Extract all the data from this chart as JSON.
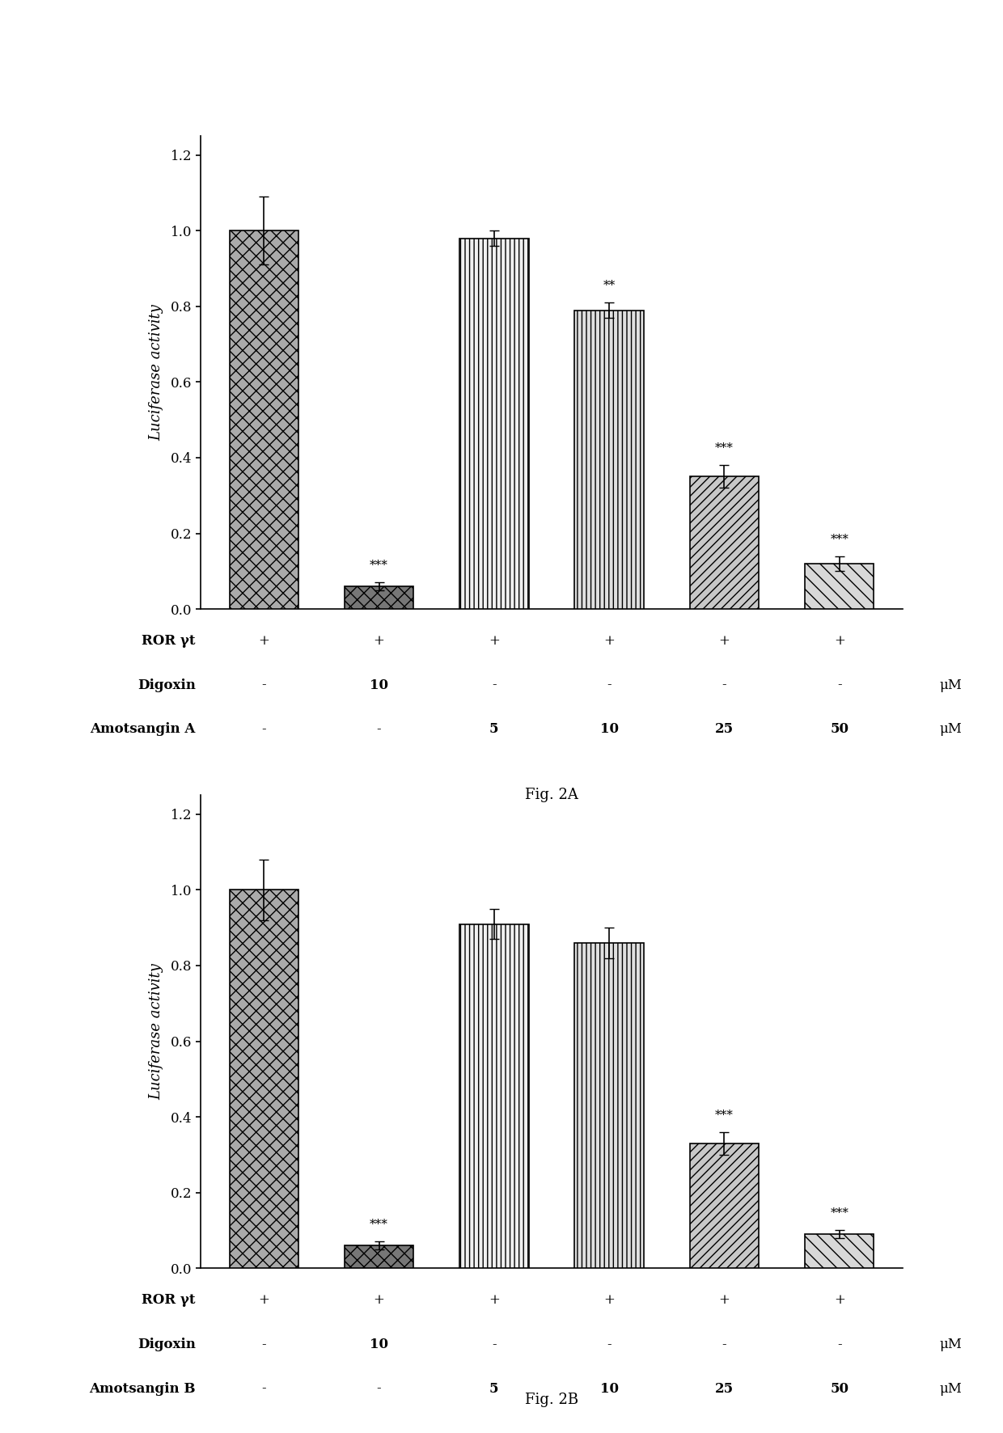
{
  "fig2A": {
    "values": [
      1.0,
      0.06,
      0.98,
      0.79,
      0.35,
      0.12
    ],
    "errors": [
      0.09,
      0.01,
      0.02,
      0.02,
      0.03,
      0.02
    ],
    "significance": [
      "",
      "***",
      "",
      "**",
      "***",
      "***"
    ],
    "ylabel": "Luciferase activity",
    "ylim": [
      0,
      1.25
    ],
    "yticks": [
      0.0,
      0.2,
      0.4,
      0.6,
      0.8,
      1.0,
      1.2
    ],
    "row_labels": [
      "ROR γt",
      "Digoxin",
      "Amotsangin A"
    ],
    "row_values": [
      [
        "+",
        "+",
        "+",
        "+",
        "+",
        "+"
      ],
      [
        "-",
        "10",
        "-",
        "-",
        "-",
        "-"
      ],
      [
        "-",
        "-",
        "5",
        "10",
        "25",
        "50"
      ]
    ],
    "row_units": [
      "",
      "μM",
      "μM"
    ],
    "fig_label": "Fig. 2A"
  },
  "fig2B": {
    "values": [
      1.0,
      0.06,
      0.91,
      0.86,
      0.33,
      0.09
    ],
    "errors": [
      0.08,
      0.01,
      0.04,
      0.04,
      0.03,
      0.01
    ],
    "significance": [
      "",
      "***",
      "",
      "",
      "***",
      "***"
    ],
    "ylabel": "Luciferase activity",
    "ylim": [
      0,
      1.25
    ],
    "yticks": [
      0.0,
      0.2,
      0.4,
      0.6,
      0.8,
      1.0,
      1.2
    ],
    "row_labels": [
      "ROR γt",
      "Digoxin",
      "Amotsangin B"
    ],
    "row_values": [
      [
        "+",
        "+",
        "+",
        "+",
        "+",
        "+"
      ],
      [
        "-",
        "10",
        "-",
        "-",
        "-",
        "-"
      ],
      [
        "-",
        "-",
        "5",
        "10",
        "25",
        "50"
      ]
    ],
    "row_units": [
      "",
      "μM",
      "μM"
    ],
    "fig_label": "Fig. 2B"
  },
  "background_color": "#ffffff",
  "text_color": "#000000",
  "edge_color": "#000000",
  "bar_width": 0.6,
  "face_colors": [
    "#aaaaaa",
    "#777777",
    "#f0f0f0",
    "#e0e0e0",
    "#c8c8c8",
    "#d8d8d8"
  ],
  "hatch_patterns": [
    "xx",
    "xx",
    "|||",
    "|||",
    "///",
    "\\\\"
  ],
  "fontsize_ylabel": 13,
  "fontsize_tick": 12,
  "fontsize_table": 12,
  "fontsize_sig": 11,
  "fontsize_figlabel": 13
}
